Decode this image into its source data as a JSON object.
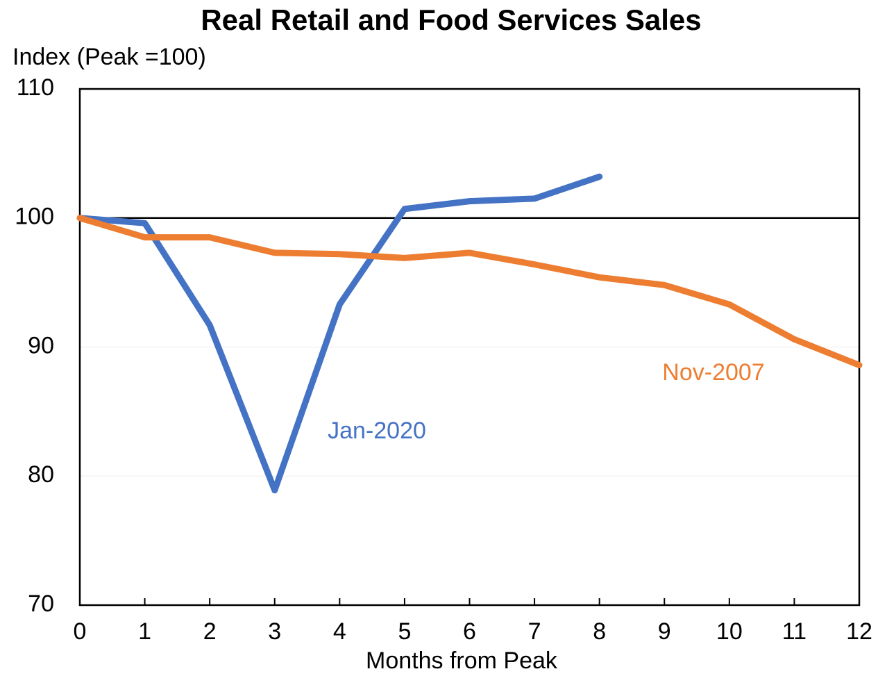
{
  "chart_data": {
    "type": "line",
    "title": "Real Retail and Food Services Sales",
    "y_label": "Index (Peak =100)",
    "x_label": "Months from Peak",
    "x": [
      0,
      1,
      2,
      3,
      4,
      5,
      6,
      7,
      8,
      9,
      10,
      11,
      12
    ],
    "series": [
      {
        "name": "Jan-2020",
        "color": "#4472c4",
        "values": [
          100,
          99.6,
          91.7,
          78.9,
          93.3,
          100.7,
          101.3,
          101.5,
          103.2,
          null,
          null,
          null,
          null
        ]
      },
      {
        "name": "Nov-2007",
        "color": "#ed7d31",
        "values": [
          100,
          98.5,
          98.5,
          97.3,
          97.2,
          96.9,
          97.3,
          96.4,
          95.4,
          94.8,
          93.3,
          90.6,
          88.6
        ]
      }
    ],
    "xlim": [
      0,
      12
    ],
    "xticks": [
      0,
      1,
      2,
      3,
      4,
      5,
      6,
      7,
      8,
      9,
      10,
      11,
      12
    ],
    "ylim": [
      70,
      110
    ],
    "yticks": [
      70,
      80,
      90,
      100,
      110
    ],
    "grid": true,
    "reference_line": 100
  }
}
